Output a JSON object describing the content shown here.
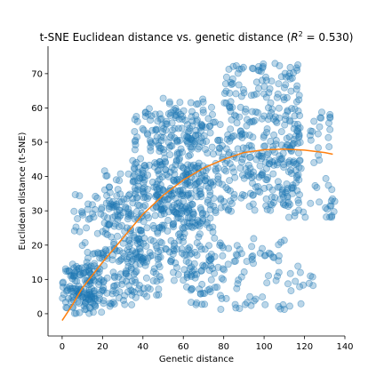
{
  "chart_data": {
    "type": "scatter",
    "title_prefix": "t-SNE Euclidean distance vs. genetic distance (",
    "title_r2_symbol": "R",
    "title_r2_sup": "2",
    "title_r2_value": " = 0.530)",
    "xlabel": "Genetic distance",
    "ylabel": "Euclidean distance (t-SNE)",
    "xlim": [
      -7,
      140
    ],
    "ylim": [
      -6.5,
      78
    ],
    "xticks": [
      0,
      20,
      40,
      60,
      80,
      100,
      120,
      140
    ],
    "yticks": [
      0,
      10,
      20,
      30,
      40,
      50,
      60,
      70
    ],
    "grid": false,
    "scatter_color": "#1f77b4",
    "scatter_alpha": 0.3,
    "fit_color": "#ff7f0e",
    "fit_line": {
      "x": [
        0,
        5,
        10,
        20,
        30,
        40,
        50,
        60,
        70,
        80,
        90,
        100,
        110,
        120,
        130,
        134
      ],
      "y": [
        -2,
        2.5,
        7.5,
        15,
        22,
        29,
        34.5,
        39,
        42.5,
        45,
        47,
        47.8,
        48,
        47.7,
        47,
        46.5
      ]
    },
    "clusters": [
      {
        "x_range": [
          0,
          20
        ],
        "y_range": [
          0,
          14
        ],
        "count": 120
      },
      {
        "x_range": [
          5,
          40
        ],
        "y_range": [
          2,
          35
        ],
        "count": 160
      },
      {
        "x_range": [
          20,
          50
        ],
        "y_range": [
          5,
          45
        ],
        "count": 180
      },
      {
        "x_range": [
          35,
          65
        ],
        "y_range": [
          15,
          60
        ],
        "count": 200
      },
      {
        "x_range": [
          45,
          75
        ],
        "y_range": [
          25,
          63
        ],
        "count": 180
      },
      {
        "x_range": [
          55,
          80
        ],
        "y_range": [
          5,
          58
        ],
        "count": 150
      },
      {
        "x_range": [
          60,
          95
        ],
        "y_range": [
          1,
          20
        ],
        "count": 70
      },
      {
        "x_range": [
          80,
          118
        ],
        "y_range": [
          30,
          73
        ],
        "count": 230
      },
      {
        "x_range": [
          80,
          135
        ],
        "y_range": [
          28,
          60
        ],
        "count": 160
      },
      {
        "x_range": [
          88,
          125
        ],
        "y_range": [
          1,
          22
        ],
        "count": 45
      }
    ]
  }
}
